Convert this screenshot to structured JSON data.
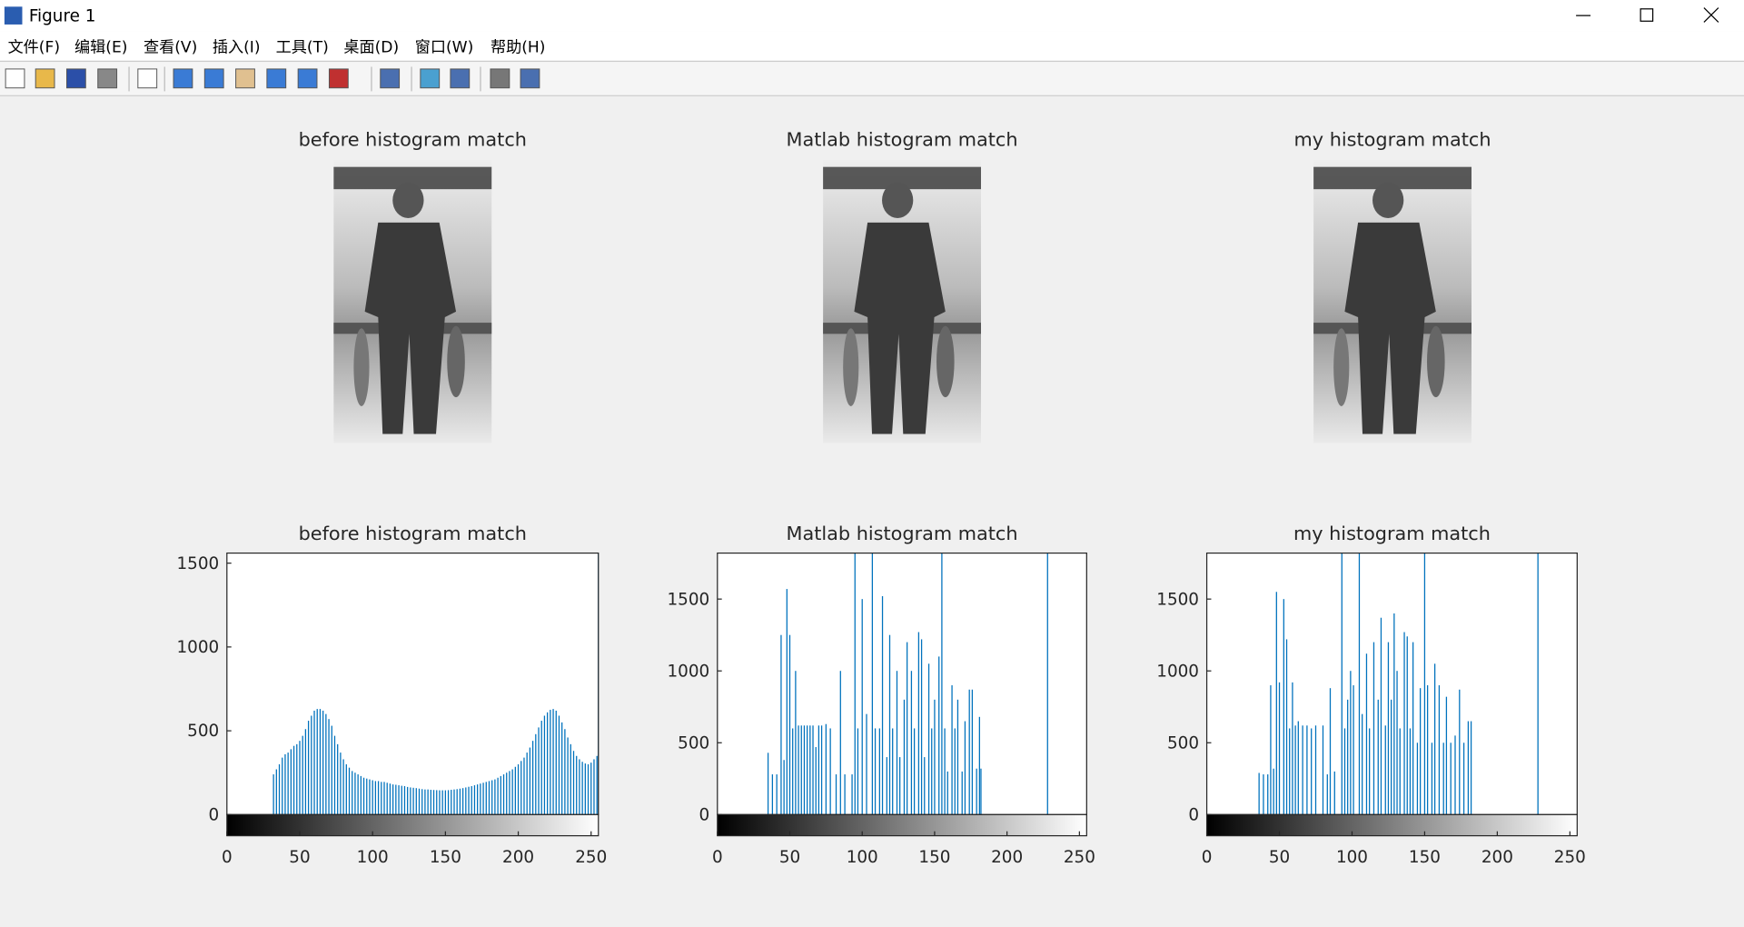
{
  "window": {
    "title": "Figure 1",
    "menu": [
      "文件(F)",
      "编辑(E)",
      "查看(V)",
      "插入(I)",
      "工具(T)",
      "桌面(D)",
      "窗口(W)",
      "帮助(H)"
    ]
  },
  "images": [
    {
      "title": "before histogram match"
    },
    {
      "title": "Matlab histogram match"
    },
    {
      "title": "my histogram match"
    }
  ],
  "chart_data": [
    {
      "type": "bar",
      "title": "before histogram match",
      "color": "#0072bd",
      "xlim": [
        0,
        255
      ],
      "ylim": [
        0,
        1560
      ],
      "xticks": [
        0,
        50,
        100,
        150,
        200,
        250
      ],
      "yticks": [
        0,
        500,
        1000,
        1500
      ],
      "x": [
        32,
        34,
        36,
        38,
        40,
        42,
        44,
        46,
        48,
        50,
        52,
        54,
        56,
        58,
        60,
        62,
        64,
        66,
        68,
        70,
        72,
        74,
        76,
        78,
        80,
        82,
        84,
        86,
        88,
        90,
        92,
        94,
        96,
        98,
        100,
        102,
        104,
        106,
        108,
        110,
        112,
        114,
        116,
        118,
        120,
        122,
        124,
        126,
        128,
        130,
        132,
        134,
        136,
        138,
        140,
        142,
        144,
        146,
        148,
        150,
        152,
        154,
        156,
        158,
        160,
        162,
        164,
        166,
        168,
        170,
        172,
        174,
        176,
        178,
        180,
        182,
        184,
        186,
        188,
        190,
        192,
        194,
        196,
        198,
        200,
        202,
        204,
        206,
        208,
        210,
        212,
        214,
        216,
        218,
        220,
        222,
        224,
        226,
        228,
        230,
        232,
        234,
        236,
        238,
        240,
        242,
        244,
        246,
        248,
        250,
        252,
        254,
        255
      ],
      "values": [
        240,
        270,
        300,
        340,
        360,
        370,
        390,
        410,
        420,
        440,
        470,
        510,
        560,
        590,
        620,
        630,
        630,
        620,
        600,
        570,
        530,
        470,
        420,
        370,
        330,
        300,
        280,
        260,
        250,
        240,
        230,
        220,
        215,
        210,
        205,
        200,
        200,
        195,
        195,
        190,
        185,
        180,
        178,
        175,
        172,
        170,
        165,
        162,
        160,
        158,
        155,
        152,
        150,
        150,
        148,
        147,
        146,
        145,
        145,
        145,
        146,
        148,
        150,
        152,
        155,
        158,
        162,
        166,
        170,
        175,
        180,
        185,
        190,
        195,
        200,
        205,
        210,
        220,
        230,
        240,
        250,
        260,
        270,
        285,
        300,
        320,
        340,
        370,
        400,
        440,
        480,
        520,
        560,
        590,
        610,
        625,
        630,
        620,
        590,
        550,
        510,
        460,
        420,
        380,
        350,
        330,
        315,
        305,
        300,
        310,
        330,
        350,
        1560
      ]
    },
    {
      "type": "bar",
      "title": "Matlab histogram match",
      "color": "#0072bd",
      "xlim": [
        0,
        255
      ],
      "ylim": [
        0,
        1820
      ],
      "xticks": [
        0,
        50,
        100,
        150,
        200,
        250
      ],
      "yticks": [
        0,
        500,
        1000,
        1500
      ],
      "x": [
        35,
        38,
        41,
        44,
        46,
        48,
        50,
        52,
        54,
        56,
        58,
        60,
        62,
        64,
        66,
        68,
        70,
        72,
        75,
        78,
        82,
        85,
        88,
        93,
        95,
        97,
        100,
        103,
        107,
        109,
        112,
        114,
        117,
        119,
        121,
        124,
        126,
        129,
        131,
        134,
        136,
        139,
        141,
        143,
        146,
        148,
        150,
        153,
        155,
        157,
        159,
        162,
        164,
        166,
        169,
        171,
        174,
        176,
        179,
        181,
        182,
        228
      ],
      "values": [
        430,
        280,
        280,
        1250,
        380,
        1570,
        1250,
        600,
        1000,
        620,
        620,
        620,
        620,
        620,
        620,
        470,
        620,
        620,
        630,
        600,
        280,
        1000,
        280,
        280,
        1900,
        600,
        1500,
        700,
        1900,
        600,
        600,
        1520,
        400,
        1250,
        600,
        1000,
        400,
        800,
        1200,
        1000,
        600,
        1270,
        1220,
        400,
        1050,
        600,
        800,
        1100,
        1900,
        600,
        300,
        900,
        600,
        800,
        300,
        650,
        870,
        870,
        320,
        680,
        320,
        1900
      ]
    },
    {
      "type": "bar",
      "title": "my histogram match",
      "color": "#0072bd",
      "xlim": [
        0,
        255
      ],
      "ylim": [
        0,
        1820
      ],
      "xticks": [
        0,
        50,
        100,
        150,
        200,
        250
      ],
      "yticks": [
        0,
        500,
        1000,
        1500
      ],
      "x": [
        36,
        39,
        42,
        44,
        46,
        48,
        50,
        53,
        55,
        57,
        59,
        61,
        63,
        66,
        69,
        72,
        75,
        80,
        83,
        85,
        88,
        93,
        95,
        97,
        99,
        101,
        105,
        107,
        110,
        112,
        115,
        118,
        120,
        123,
        125,
        127,
        129,
        131,
        133,
        136,
        138,
        140,
        142,
        145,
        147,
        150,
        152,
        155,
        157,
        160,
        163,
        165,
        168,
        171,
        174,
        177,
        180,
        182,
        228
      ],
      "values": [
        290,
        280,
        280,
        900,
        320,
        1550,
        920,
        1500,
        1220,
        600,
        920,
        620,
        650,
        620,
        620,
        600,
        620,
        620,
        280,
        880,
        300,
        1900,
        600,
        800,
        1000,
        900,
        1900,
        700,
        1120,
        600,
        1200,
        800,
        1370,
        620,
        1200,
        800,
        1400,
        1000,
        600,
        1270,
        1240,
        600,
        1200,
        500,
        880,
        1900,
        900,
        500,
        1050,
        900,
        500,
        820,
        500,
        550,
        870,
        500,
        650,
        650,
        1900
      ]
    }
  ]
}
